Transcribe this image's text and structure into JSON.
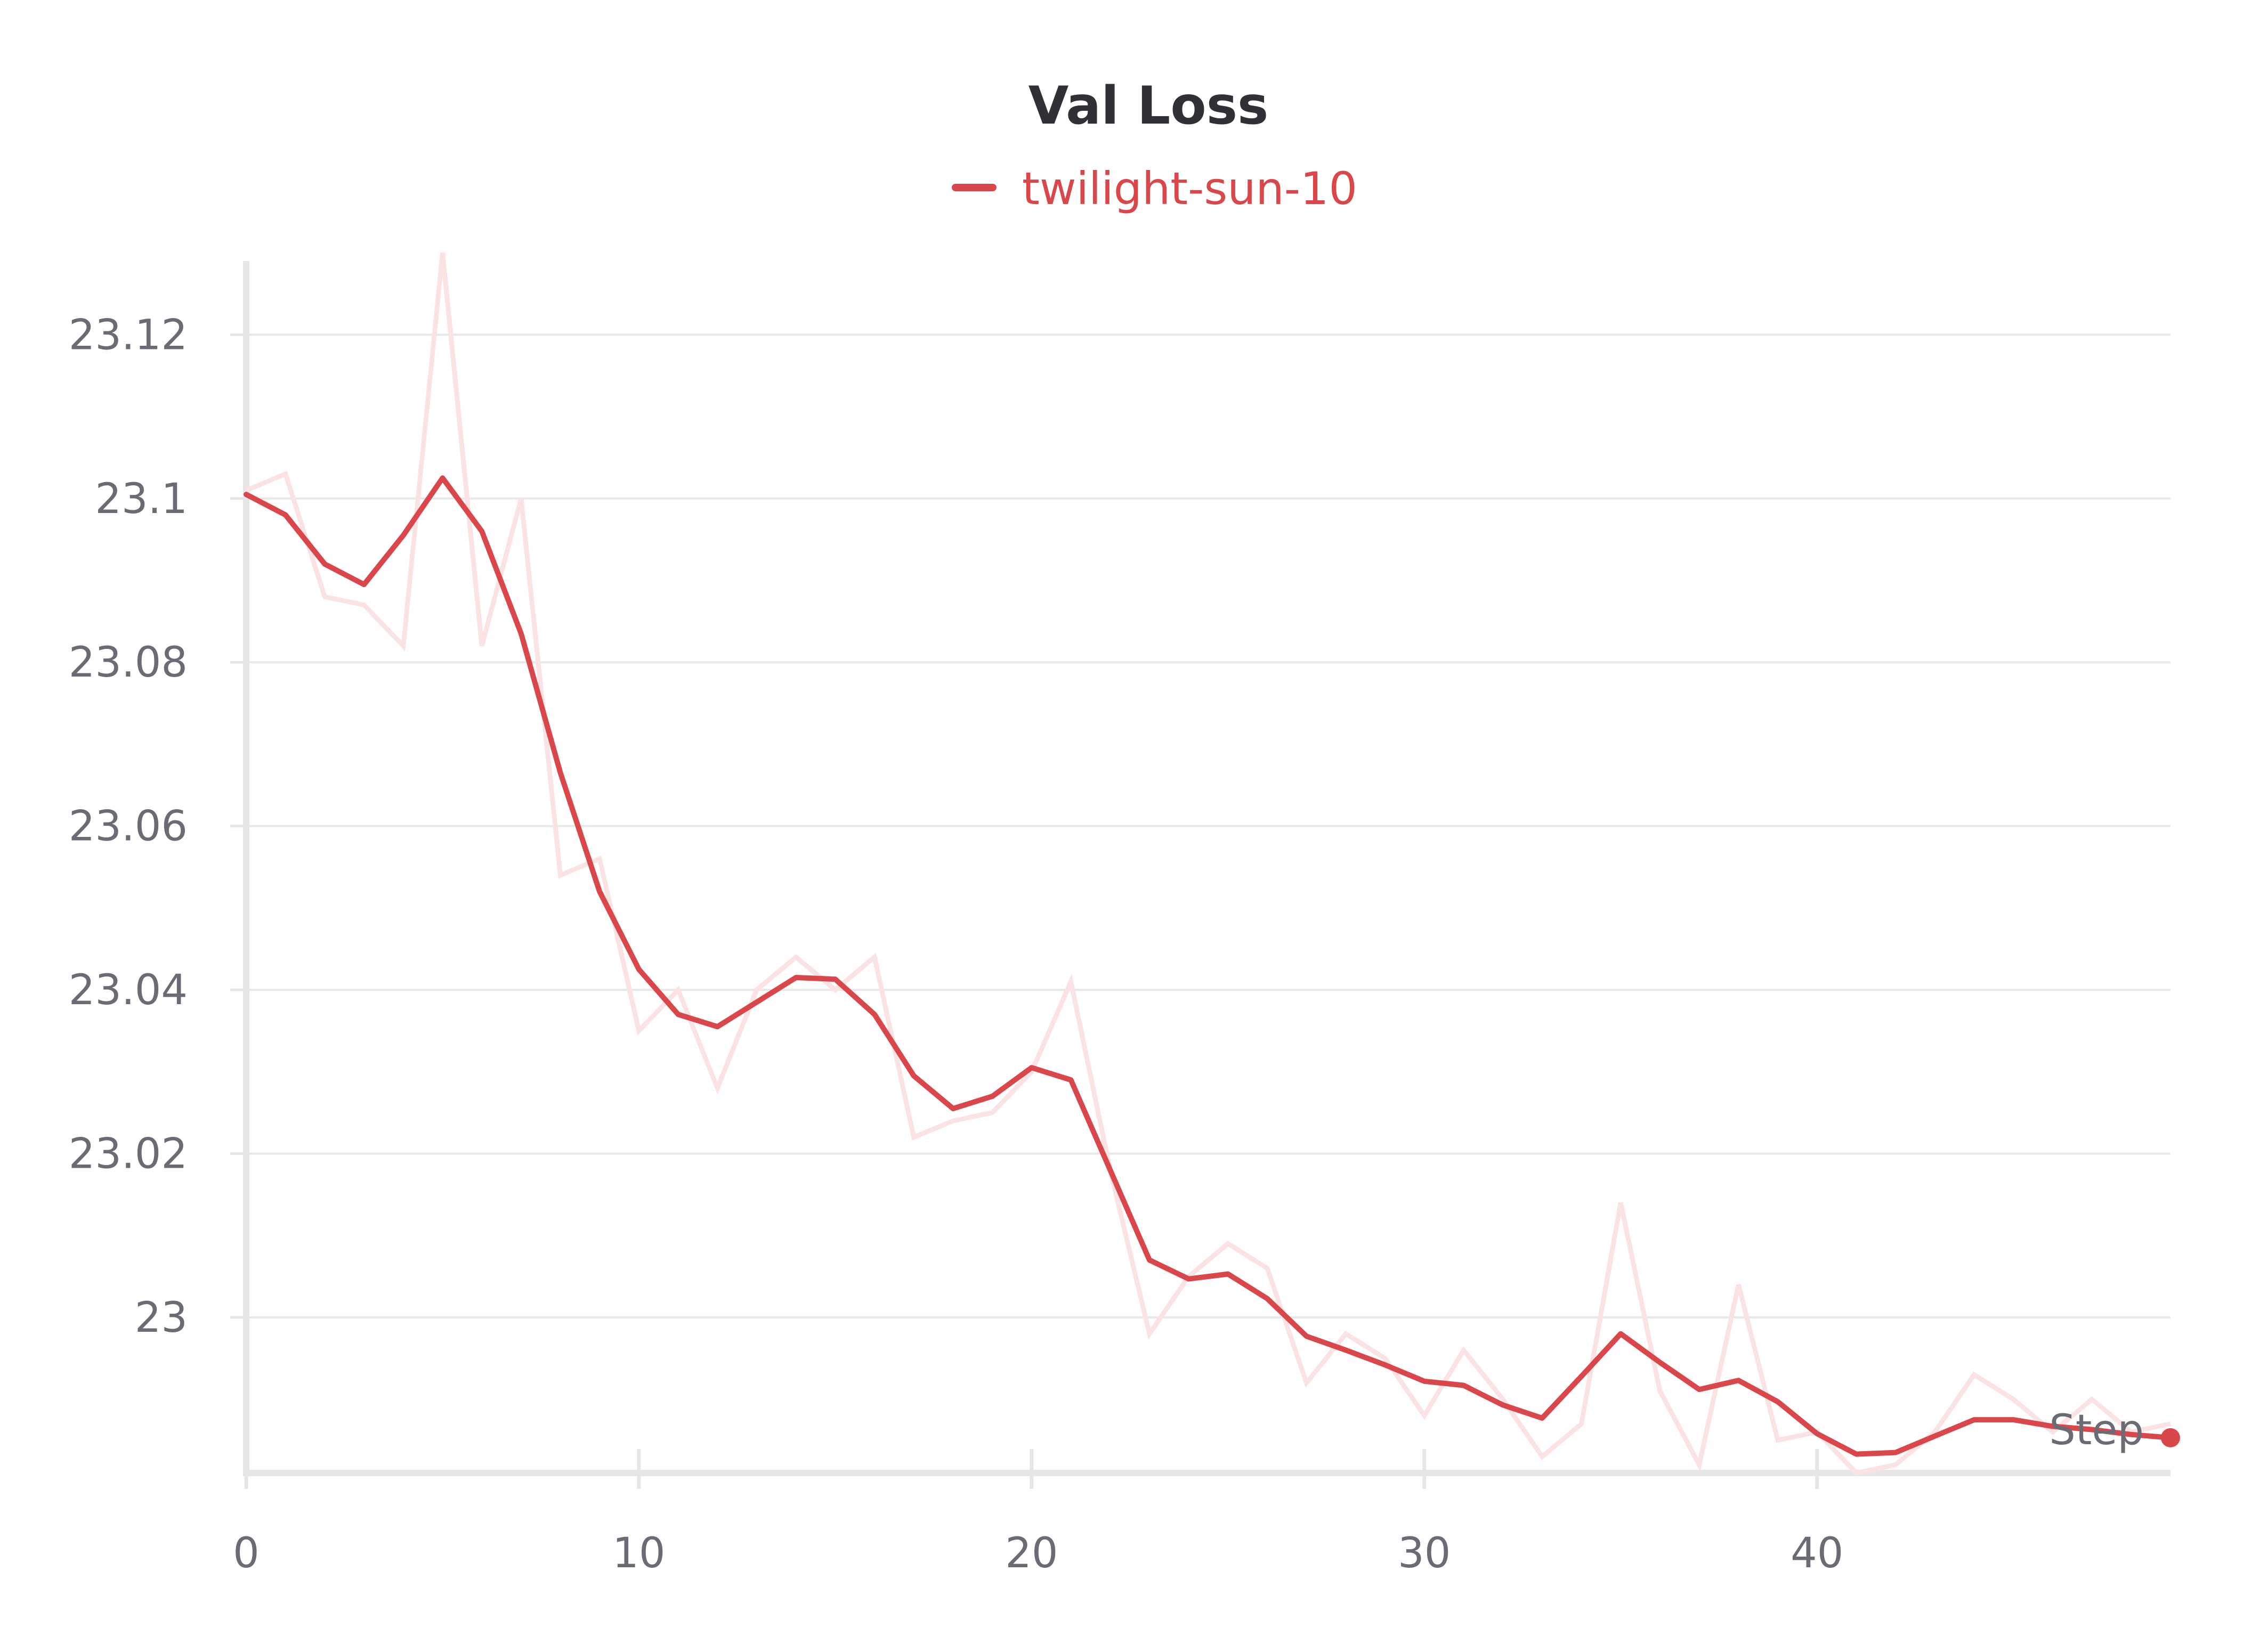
{
  "chart_data": {
    "type": "line",
    "title": "Val Loss",
    "xlabel": "Step",
    "ylabel": "",
    "xlim": [
      0,
      49
    ],
    "ylim": [
      22.981,
      23.129
    ],
    "xticks": [
      0,
      10,
      20,
      30,
      40
    ],
    "yticks": [
      23,
      23.02,
      23.04,
      23.06,
      23.08,
      23.1,
      23.12
    ],
    "ytick_labels": [
      "23",
      "23.02",
      "23.04",
      "23.06",
      "23.08",
      "23.1",
      "23.12"
    ],
    "xtick_labels": [
      "0",
      "10",
      "20",
      "30",
      "40"
    ],
    "grid": true,
    "legend_position": "top-center",
    "series": [
      {
        "name": "twilight-sun-10",
        "color": "#d9474b",
        "raw_color": "#fbe3e3",
        "x": [
          0,
          1,
          2,
          3,
          4,
          5,
          6,
          7,
          8,
          9,
          10,
          11,
          12,
          13,
          14,
          15,
          16,
          17,
          18,
          19,
          20,
          21,
          22,
          23,
          24,
          25,
          26,
          27,
          28,
          29,
          30,
          31,
          32,
          33,
          34,
          35,
          36,
          37,
          38,
          39,
          40,
          41,
          42,
          43,
          44,
          45,
          46,
          47,
          48,
          49
        ],
        "raw": [
          23.101,
          23.103,
          23.088,
          23.087,
          23.082,
          23.13,
          23.082,
          23.1,
          23.054,
          23.056,
          23.035,
          23.04,
          23.028,
          23.04,
          23.044,
          23.04,
          23.044,
          23.022,
          23.024,
          23.025,
          23.03,
          23.041,
          23.018,
          22.998,
          23.005,
          23.009,
          23.006,
          22.992,
          22.998,
          22.995,
          22.988,
          22.996,
          22.99,
          22.983,
          22.987,
          23.014,
          22.991,
          22.982,
          23.004,
          22.985,
          22.986,
          22.981,
          22.982,
          22.986,
          22.993,
          22.99,
          22.986,
          22.99,
          22.986,
          22.987
        ],
        "smoothed": [
          23.1005,
          23.098,
          23.092,
          23.0895,
          23.0955,
          23.1025,
          23.096,
          23.0835,
          23.0665,
          23.052,
          23.0425,
          23.037,
          23.0355,
          23.0385,
          23.0415,
          23.0413,
          23.037,
          23.0295,
          23.0255,
          23.027,
          23.0305,
          23.029,
          23.018,
          23.007,
          23.0047,
          23.0053,
          23.0023,
          22.9977,
          22.996,
          22.9942,
          22.9922,
          22.9917,
          22.9893,
          22.9877,
          22.9928,
          22.998,
          22.9945,
          22.9912,
          22.9923,
          22.9897,
          22.9858,
          22.9833,
          22.9835,
          22.9855,
          22.9875,
          22.9875,
          22.9867,
          22.9863,
          22.9857,
          22.9853
        ]
      }
    ]
  }
}
